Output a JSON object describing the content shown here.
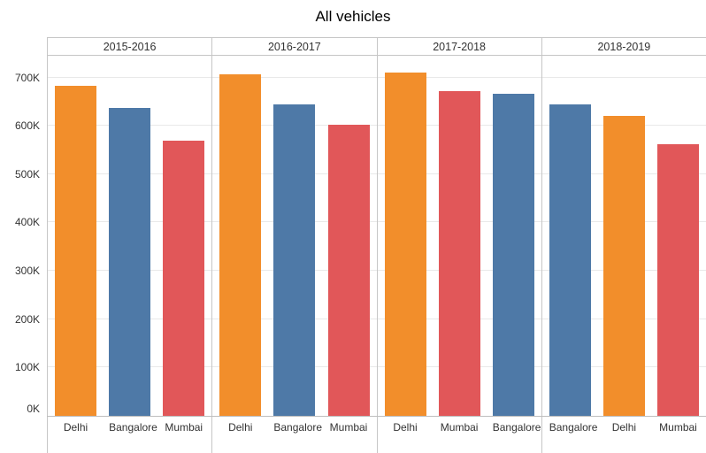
{
  "title": "All vehicles",
  "chart_data": {
    "type": "bar",
    "title": "All vehicles",
    "value_unit": "K (thousands)",
    "grid": true,
    "legend": false,
    "axis_max_thousands": 745,
    "ylim": [
      0,
      745000
    ],
    "yticks_thousands": [
      0,
      100,
      200,
      300,
      400,
      500,
      600,
      700
    ],
    "ytick_labels": [
      "0K",
      "100K",
      "200K",
      "300K",
      "400K",
      "500K",
      "600K",
      "700K"
    ],
    "colors": {
      "Delhi": "#f28e2b",
      "Bangalore": "#4e79a7",
      "Mumbai": "#e15759"
    },
    "panels": [
      {
        "year": "2015-2016",
        "bars": [
          {
            "city": "Delhi",
            "value_thousands": 683
          },
          {
            "city": "Bangalore",
            "value_thousands": 637
          },
          {
            "city": "Mumbai",
            "value_thousands": 570
          }
        ]
      },
      {
        "year": "2016-2017",
        "bars": [
          {
            "city": "Delhi",
            "value_thousands": 706
          },
          {
            "city": "Bangalore",
            "value_thousands": 644
          },
          {
            "city": "Mumbai",
            "value_thousands": 602
          }
        ]
      },
      {
        "year": "2017-2018",
        "bars": [
          {
            "city": "Delhi",
            "value_thousands": 710
          },
          {
            "city": "Mumbai",
            "value_thousands": 672
          },
          {
            "city": "Bangalore",
            "value_thousands": 666
          }
        ]
      },
      {
        "year": "2018-2019",
        "bars": [
          {
            "city": "Bangalore",
            "value_thousands": 645
          },
          {
            "city": "Delhi",
            "value_thousands": 621
          },
          {
            "city": "Mumbai",
            "value_thousands": 562
          }
        ]
      }
    ]
  }
}
